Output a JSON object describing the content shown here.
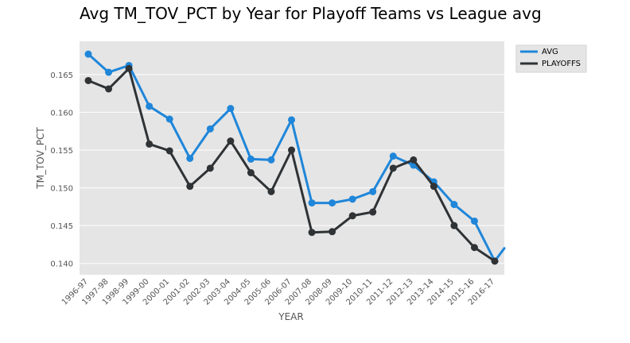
{
  "chart_data": {
    "type": "line",
    "title": "Avg TM_TOV_PCT by Year for Playoff Teams vs League avg",
    "xlabel": "YEAR",
    "ylabel": "TM_TOV_PCT",
    "categories": [
      "1996-97",
      "1997-98",
      "1998-99",
      "1999-00",
      "2000-01",
      "2001-02",
      "2002-03",
      "2003-04",
      "2004-05",
      "2005-06",
      "2006-07",
      "2007-08",
      "2008-09",
      "2009-10",
      "2010-11",
      "2011-12",
      "2012-13",
      "2013-14",
      "2014-15",
      "2015-16",
      "2016-17"
    ],
    "yticks": [
      "0.140",
      "0.145",
      "0.150",
      "0.155",
      "0.160",
      "0.165"
    ],
    "ylim": [
      0.1385,
      0.1694
    ],
    "grid": true,
    "legend_position": "outside-top-right",
    "series": [
      {
        "name": "AVG",
        "color": "#1f86d9",
        "values": [
          0.1677,
          0.1653,
          0.1662,
          0.1608,
          0.1591,
          0.1539,
          0.1578,
          0.1605,
          0.1538,
          0.1537,
          0.159,
          0.148,
          0.148,
          0.1485,
          0.1495,
          0.1542,
          0.153,
          0.1508,
          0.1478,
          0.1456,
          0.1403
        ],
        "tail_value": 0.142
      },
      {
        "name": "PLAYOFFS",
        "color": "#2f3336",
        "values": [
          0.1642,
          0.1631,
          0.1658,
          0.1558,
          0.1549,
          0.1502,
          0.1526,
          0.1562,
          0.152,
          0.1495,
          0.155,
          0.1441,
          0.1442,
          0.1463,
          0.1468,
          0.1526,
          0.1537,
          0.1502,
          0.145,
          0.1421,
          0.1403
        ]
      }
    ]
  }
}
